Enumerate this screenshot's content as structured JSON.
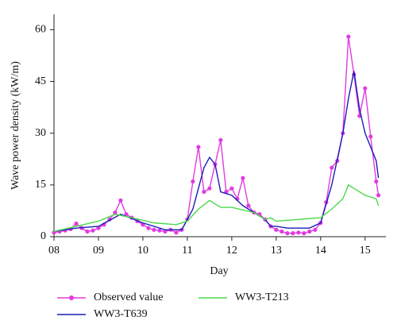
{
  "chart_data": {
    "type": "line",
    "x_label": "Day",
    "y_label": "Wave power density (kW/m)",
    "xlim": [
      8,
      15.45
    ],
    "ylim": [
      0,
      64
    ],
    "xticks": [
      {
        "value": 8,
        "label": "08"
      },
      {
        "value": 9,
        "label": "09"
      },
      10,
      11,
      12,
      13,
      14,
      15
    ],
    "yticks": [
      0,
      15,
      30,
      45,
      60
    ],
    "grid": false,
    "series": [
      {
        "name": "Observed value",
        "color": "#e23be2",
        "markers": true,
        "x": [
          8.0,
          8.125,
          8.25,
          8.375,
          8.5,
          8.625,
          8.75,
          8.875,
          9.0,
          9.125,
          9.25,
          9.375,
          9.5,
          9.625,
          9.75,
          9.875,
          10.0,
          10.125,
          10.25,
          10.375,
          10.5,
          10.625,
          10.75,
          10.875,
          11.0,
          11.125,
          11.25,
          11.375,
          11.5,
          11.625,
          11.75,
          11.875,
          12.0,
          12.125,
          12.25,
          12.375,
          12.5,
          12.625,
          12.75,
          12.875,
          13.0,
          13.125,
          13.25,
          13.375,
          13.5,
          13.625,
          13.75,
          13.875,
          14.0,
          14.125,
          14.25,
          14.375,
          14.5,
          14.625,
          14.75,
          14.875,
          15.0,
          15.125,
          15.25,
          15.3
        ],
        "values": [
          1.2,
          1.5,
          1.8,
          2.2,
          3.8,
          2.5,
          1.5,
          1.8,
          2.5,
          3.5,
          5,
          7,
          10.5,
          6.5,
          5.5,
          4.5,
          3.5,
          2.5,
          2,
          1.8,
          1.5,
          2,
          1.2,
          2,
          5,
          16,
          26,
          13,
          14,
          21,
          28,
          13,
          14,
          11,
          17,
          9,
          7,
          6.5,
          5,
          3,
          2,
          1.5,
          1,
          1,
          1.2,
          1,
          1.5,
          2,
          4,
          10,
          20,
          22,
          30,
          58,
          47,
          35,
          43,
          29,
          16,
          12
        ]
      },
      {
        "name": "WW3-T639",
        "color": "#1c1cb8",
        "markers": false,
        "x": [
          8.0,
          8.5,
          9.0,
          9.5,
          10.0,
          10.5,
          10.875,
          11.125,
          11.375,
          11.5,
          11.625,
          11.75,
          12.0,
          12.25,
          12.5,
          12.75,
          12.875,
          13.0,
          13.25,
          13.75,
          14.0,
          14.25,
          14.5,
          14.625,
          14.75,
          14.875,
          15.0,
          15.25,
          15.3
        ],
        "values": [
          1.5,
          2.5,
          3,
          6.5,
          4,
          2,
          2,
          8,
          20,
          23,
          21,
          13,
          12,
          9,
          7,
          5,
          3,
          3,
          2.5,
          2.5,
          4,
          15,
          30,
          40,
          48,
          37,
          30,
          22,
          17
        ]
      },
      {
        "name": "WW3-T213",
        "color": "#4bd94b",
        "markers": false,
        "x": [
          8.0,
          8.5,
          9.0,
          9.375,
          9.75,
          10.25,
          10.75,
          11.0,
          11.25,
          11.5,
          11.75,
          12.0,
          12.5,
          12.75,
          12.875,
          13.0,
          13.5,
          14.0,
          14.25,
          14.5,
          14.625,
          14.75,
          15.0,
          15.25,
          15.3
        ],
        "values": [
          1.5,
          3,
          4.5,
          6.5,
          5.5,
          4,
          3.5,
          4.5,
          8,
          10.5,
          8.5,
          8.5,
          7,
          5,
          5.5,
          4.5,
          5,
          5.5,
          8,
          11,
          15,
          14,
          12,
          11,
          9
        ]
      }
    ]
  }
}
